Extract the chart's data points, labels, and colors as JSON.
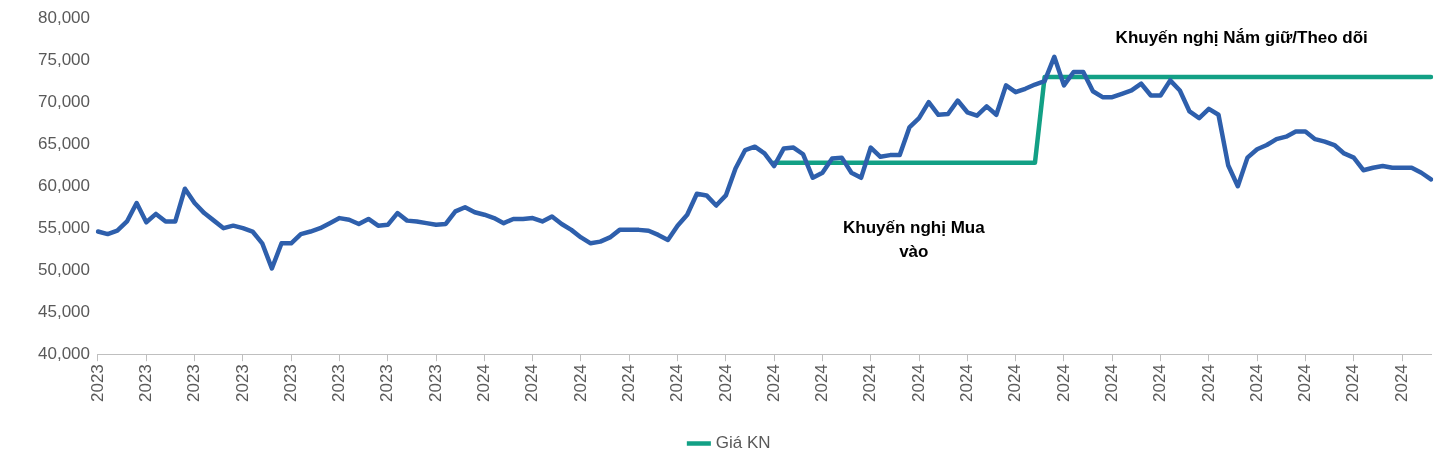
{
  "chart_data": {
    "type": "line",
    "categories": [
      "2023",
      null,
      null,
      null,
      null,
      "2023",
      null,
      null,
      null,
      null,
      "2023",
      null,
      null,
      null,
      null,
      "2023",
      null,
      null,
      null,
      null,
      "2023",
      null,
      null,
      null,
      null,
      "2023",
      null,
      null,
      null,
      null,
      "2023",
      null,
      null,
      null,
      null,
      "2023",
      null,
      null,
      null,
      null,
      "2024",
      null,
      null,
      null,
      null,
      "2024",
      null,
      null,
      null,
      null,
      "2024",
      null,
      null,
      null,
      null,
      "2024",
      null,
      null,
      null,
      null,
      "2024",
      null,
      null,
      null,
      null,
      "2024",
      null,
      null,
      null,
      null,
      "2024",
      null,
      null,
      null,
      null,
      "2024",
      null,
      null,
      null,
      null,
      "2024",
      null,
      null,
      null,
      null,
      "2024",
      null,
      null,
      null,
      null,
      "2024",
      null,
      null,
      null,
      null,
      "2024",
      null,
      null,
      null,
      null,
      "2024",
      null,
      null,
      null,
      null,
      "2024",
      null,
      null,
      null,
      null,
      "2024",
      null,
      null,
      null,
      null,
      "2024",
      null,
      null,
      null,
      null,
      "2024",
      null,
      null,
      null,
      null,
      "2024",
      null,
      null,
      null,
      null,
      "2024",
      null,
      null,
      null,
      null,
      "2024",
      null,
      null,
      null
    ],
    "series": [
      {
        "color": "#2e5fac",
        "values": [
          54600,
          54300,
          54700,
          55800,
          58000,
          55700,
          56700,
          55800,
          55800,
          59700,
          58000,
          56800,
          55900,
          55000,
          55300,
          55000,
          54600,
          53200,
          50200,
          53200,
          53200,
          54300,
          54600,
          55000,
          55600,
          56200,
          56000,
          55500,
          56100,
          55300,
          55400,
          56800,
          55900,
          55800,
          55600,
          55400,
          55500,
          57000,
          57500,
          56900,
          56600,
          56200,
          55600,
          56100,
          56100,
          56200,
          55800,
          56400,
          55500,
          54800,
          53900,
          53200,
          53400,
          53900,
          54800,
          54800,
          54800,
          54700,
          54200,
          53600,
          55300,
          56600,
          59100,
          58900,
          57700,
          58900,
          62100,
          64300,
          64700,
          63900,
          62400,
          64500,
          64600,
          63800,
          61000,
          61600,
          63300,
          63400,
          61600,
          61000,
          64600,
          63500,
          63700,
          63700,
          67000,
          68100,
          70000,
          68500,
          68600,
          70200,
          68800,
          68400,
          69500,
          68500,
          72000,
          71200,
          71600,
          72100,
          72500,
          75400,
          72000,
          73600,
          73600,
          71300,
          70600,
          70600,
          71000,
          71400,
          72200,
          70800,
          70800,
          72600,
          71400,
          68900,
          68100,
          69200,
          68500,
          62500,
          60000,
          63400,
          64400,
          64900,
          65600,
          65900,
          66500,
          66500,
          65600,
          65300,
          64900,
          63900,
          63400,
          61900,
          62200,
          62400,
          62200,
          62200,
          62200,
          61600,
          60800
        ]
      },
      {
        "name": "Giá KN",
        "color": "#12a085",
        "values": [
          null,
          null,
          null,
          null,
          null,
          null,
          null,
          null,
          null,
          null,
          null,
          null,
          null,
          null,
          null,
          null,
          null,
          null,
          null,
          null,
          null,
          null,
          null,
          null,
          null,
          null,
          null,
          null,
          null,
          null,
          null,
          null,
          null,
          null,
          null,
          null,
          null,
          null,
          null,
          null,
          null,
          null,
          null,
          null,
          null,
          null,
          null,
          null,
          null,
          null,
          null,
          null,
          null,
          null,
          null,
          null,
          null,
          null,
          null,
          null,
          null,
          null,
          null,
          null,
          null,
          null,
          null,
          null,
          null,
          null,
          62800,
          62800,
          62800,
          62800,
          62800,
          62800,
          62800,
          62800,
          62800,
          62800,
          62800,
          62800,
          62800,
          62800,
          62800,
          62800,
          62800,
          62800,
          62800,
          62800,
          62800,
          62800,
          62800,
          62800,
          62800,
          62800,
          62800,
          62800,
          73000,
          73000,
          73000,
          73000,
          73000,
          73000,
          73000,
          73000,
          73000,
          73000,
          73000,
          73000,
          73000,
          73000,
          73000,
          73000,
          73000,
          73000,
          73000,
          73000,
          73000,
          73000,
          73000,
          73000,
          73000,
          73000,
          73000,
          73000,
          73000,
          73000,
          73000,
          73000,
          73000,
          73000,
          73000,
          73000,
          73000,
          73000,
          73000,
          73000,
          73000
        ]
      }
    ],
    "ylim": [
      40000,
      80000
    ],
    "yticks": [
      {
        "value": 40000,
        "label": "40,000"
      },
      {
        "value": 45000,
        "label": "45,000"
      },
      {
        "value": 50000,
        "label": "50,000"
      },
      {
        "value": 55000,
        "label": "55,000"
      },
      {
        "value": 60000,
        "label": "60,000"
      },
      {
        "value": 65000,
        "label": "65,000"
      },
      {
        "value": 70000,
        "label": "70,000"
      },
      {
        "value": 75000,
        "label": "75,000"
      },
      {
        "value": 80000,
        "label": "80,000"
      }
    ],
    "legend": "bottom",
    "annotations": [
      "Khuyến nghị Mua vào",
      "Khuyến nghị Nắm giữ/Theo dõi"
    ]
  }
}
